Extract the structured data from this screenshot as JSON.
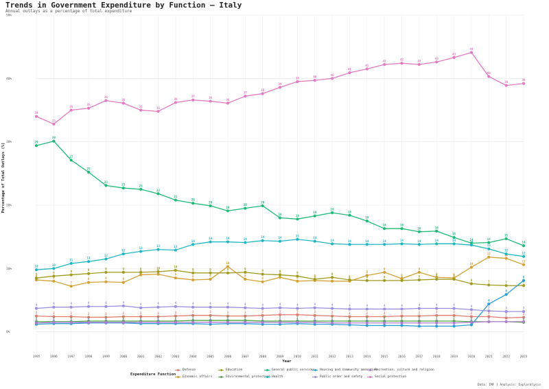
{
  "header": {
    "title": "Trends in Government Expenditure by Function — Italy",
    "subtitle": "Annual outlays as a percentage of total expenditure"
  },
  "caption": "Data: IMF | Analysis: Exploralysis",
  "legend": {
    "title": "Expenditure Function"
  },
  "chart_data": {
    "type": "line",
    "xlabel": "Year",
    "ylabel": "Percentage of Total Outlays (%)",
    "x": [
      1995,
      1996,
      1997,
      1998,
      1999,
      2000,
      2001,
      2002,
      2003,
      2004,
      2005,
      2006,
      2007,
      2008,
      2009,
      2010,
      2011,
      2012,
      2013,
      2014,
      2015,
      2016,
      2017,
      2018,
      2019,
      2020,
      2021,
      2022,
      2023
    ],
    "xlim": [
      1995,
      2023
    ],
    "ylim": [
      -3.5,
      50
    ],
    "yticks": [
      0,
      10,
      20,
      30,
      40,
      50
    ],
    "ytick_labels": [
      "0%",
      "10%",
      "20%",
      "30%",
      "40%",
      "50%"
    ],
    "grid": true,
    "legend_position": "bottom",
    "series": [
      {
        "name": "Defence",
        "color": "#e07b6e",
        "values": [
          2.5,
          2.4,
          2.4,
          2.3,
          2.3,
          2.4,
          2.4,
          2.4,
          2.5,
          2.6,
          2.6,
          2.5,
          2.5,
          2.6,
          2.7,
          2.7,
          2.6,
          2.5,
          2.4,
          2.4,
          2.4,
          2.5,
          2.5,
          2.6,
          2.6,
          2.4,
          2.4,
          2.2,
          2.3
        ],
        "labels": [
          "3",
          "2",
          "2",
          "2",
          "2",
          "2",
          "2",
          "2",
          "3",
          "3",
          "3",
          "3",
          "3",
          "3",
          "3",
          "3",
          "3",
          "2",
          "2",
          "2",
          "2",
          "2",
          "2",
          "3",
          "3",
          "2",
          "2",
          "2",
          "2"
        ]
      },
      {
        "name": "Economic affairs",
        "color": "#d4a032",
        "values": [
          8.2,
          8.0,
          7.2,
          7.8,
          7.9,
          7.8,
          9.0,
          9.1,
          8.5,
          8.2,
          8.3,
          10.3,
          8.3,
          7.9,
          8.6,
          8.0,
          8.1,
          8.0,
          8.0,
          8.9,
          9.4,
          8.4,
          9.4,
          8.6,
          8.5,
          10.2,
          11.8,
          11.6,
          10.6
        ],
        "labels": [
          "8",
          "8",
          "7",
          "8",
          "8",
          "8",
          "9",
          "9",
          "8",
          "8",
          "8",
          "10",
          "8",
          "8",
          "9",
          "8",
          "8",
          "8",
          "8",
          "9",
          "9",
          "8",
          "9",
          "9",
          "9",
          "10",
          "12",
          "12",
          "11"
        ]
      },
      {
        "name": "Education",
        "color": "#a09b1e",
        "values": [
          8.5,
          8.8,
          9.0,
          9.2,
          9.4,
          9.4,
          9.4,
          9.5,
          9.7,
          9.3,
          9.3,
          9.3,
          9.4,
          9.1,
          9.0,
          8.8,
          8.3,
          8.6,
          8.2,
          8.1,
          8.1,
          8.1,
          8.2,
          8.3,
          8.3,
          7.6,
          7.4,
          7.3,
          7.3
        ],
        "labels": [
          "9",
          "9",
          "9",
          "9",
          "9",
          "9",
          "9",
          "10",
          "10",
          "9",
          "9",
          "9",
          "9",
          "9",
          "9",
          "9",
          "8",
          "9",
          "8",
          "8",
          "8",
          "8",
          "8",
          "8",
          "8",
          "8",
          "7",
          "7",
          "7"
        ]
      },
      {
        "name": "Environmental protection",
        "color": "#4aa83c",
        "values": [
          1.6,
          1.6,
          1.6,
          1.7,
          1.7,
          1.7,
          1.7,
          1.7,
          1.7,
          1.8,
          1.8,
          1.8,
          1.8,
          1.7,
          1.7,
          1.7,
          1.7,
          1.7,
          1.7,
          1.7,
          1.7,
          1.7,
          1.7,
          1.7,
          1.7,
          1.6,
          1.6,
          1.6,
          1.5
        ],
        "labels": [
          "2",
          "2",
          "2",
          "2",
          "2",
          "2",
          "2",
          "2",
          "2",
          "2",
          "2",
          "2",
          "2",
          "2",
          "2",
          "2",
          "2",
          "2",
          "2",
          "2",
          "2",
          "2",
          "2",
          "2",
          "2",
          "2",
          "2",
          "2",
          "2"
        ]
      },
      {
        "name": "General public services",
        "color": "#1dba78",
        "values": [
          29.4,
          30.1,
          27.1,
          25.2,
          23.1,
          22.7,
          22.5,
          21.8,
          20.8,
          20.3,
          19.9,
          19.1,
          19.5,
          19.9,
          18.0,
          17.8,
          18.3,
          18.8,
          18.4,
          17.5,
          16.3,
          16.3,
          15.8,
          15.9,
          14.9,
          14.0,
          14.1,
          14.7,
          13.6
        ],
        "labels": [
          "29",
          "30",
          "27",
          "25",
          "23",
          "23",
          "23",
          "22",
          "21",
          "20",
          "20",
          "19",
          "20",
          "20",
          "18",
          "18",
          "18",
          "19",
          "18",
          "18",
          "16",
          "16",
          "16",
          "16",
          "15",
          "14",
          "14",
          "15",
          "14"
        ]
      },
      {
        "name": "Health",
        "color": "#1fb6c4",
        "values": [
          9.8,
          10.0,
          10.8,
          11.1,
          11.5,
          12.3,
          12.7,
          13.0,
          12.9,
          13.8,
          14.2,
          14.2,
          14.1,
          14.4,
          14.3,
          14.6,
          14.3,
          13.9,
          13.8,
          13.8,
          13.8,
          13.9,
          13.8,
          13.9,
          13.9,
          13.7,
          13.1,
          12.3,
          11.9
        ],
        "labels": [
          "10",
          "10",
          "11",
          "11",
          "12",
          "12",
          "13",
          "13",
          "13",
          "14",
          "14",
          "14",
          "14",
          "14",
          "14",
          "15",
          "14",
          "14",
          "14",
          "14",
          "14",
          "14",
          "14",
          "14",
          "14",
          "14",
          "13",
          "12",
          "12"
        ]
      },
      {
        "name": "Housing and community amenities",
        "color": "#2a9fd6",
        "values": [
          1.2,
          1.3,
          1.3,
          1.4,
          1.4,
          1.4,
          1.3,
          1.3,
          1.3,
          1.3,
          1.2,
          1.3,
          1.3,
          1.2,
          1.2,
          1.3,
          1.2,
          1.2,
          1.1,
          1.0,
          1.0,
          1.0,
          0.9,
          0.9,
          0.9,
          1.1,
          4.4,
          5.9,
          8.1
        ],
        "labels": [
          "1",
          "1",
          "1",
          "1",
          "1",
          "1",
          "1",
          "1",
          "1",
          "1",
          "1",
          "1",
          "1",
          "1",
          "1",
          "1",
          "1",
          "1",
          "1",
          "1",
          "1",
          "1",
          "1",
          "1",
          "1",
          "1",
          "4",
          "6",
          "8"
        ]
      },
      {
        "name": "Public order and safety",
        "color": "#9b8fe0",
        "values": [
          3.7,
          3.9,
          3.9,
          4.0,
          4.0,
          4.1,
          3.8,
          3.9,
          4.0,
          3.9,
          3.9,
          3.9,
          3.8,
          3.7,
          3.8,
          3.7,
          3.8,
          3.7,
          3.6,
          3.6,
          3.6,
          3.6,
          3.7,
          3.7,
          3.7,
          3.5,
          3.3,
          3.2,
          3.2
        ],
        "labels": [
          "4",
          "4",
          "4",
          "4",
          "4",
          "4",
          "4",
          "4",
          "4",
          "4",
          "4",
          "4",
          "4",
          "4",
          "4",
          "4",
          "4",
          "4",
          "4",
          "4",
          "4",
          "4",
          "4",
          "4",
          "4",
          "4",
          "3",
          "3",
          "3"
        ]
      },
      {
        "name": "Recreation, culture and religion",
        "color": "#b17cd1",
        "values": [
          1.4,
          1.5,
          1.5,
          1.5,
          1.5,
          1.5,
          1.5,
          1.5,
          1.5,
          1.5,
          1.5,
          1.5,
          1.5,
          1.5,
          1.5,
          1.5,
          1.5,
          1.4,
          1.4,
          1.4,
          1.4,
          1.4,
          1.4,
          1.4,
          1.4,
          1.5,
          1.6,
          1.6,
          1.6
        ],
        "labels": [
          "1",
          "1",
          "1",
          "1",
          "1",
          "1",
          "1",
          "1",
          "1",
          "1",
          "1",
          "1",
          "1",
          "1",
          "1",
          "1",
          "1",
          "1",
          "1",
          "1",
          "1",
          "1",
          "1",
          "1",
          "1",
          "1",
          "2",
          "2",
          "2"
        ]
      },
      {
        "name": "Social protection",
        "color": "#e379c3",
        "values": [
          34.0,
          32.8,
          35.0,
          35.3,
          36.5,
          36.1,
          35.0,
          34.8,
          36.2,
          36.6,
          36.4,
          36.1,
          37.2,
          37.6,
          38.6,
          39.5,
          39.7,
          40.0,
          40.9,
          41.5,
          42.2,
          42.4,
          42.2,
          42.6,
          43.3,
          44.1,
          40.3,
          38.9,
          39.2
        ],
        "labels": [
          "34",
          "33",
          "35",
          "35",
          "36",
          "36",
          "35",
          "35",
          "36",
          "37",
          "36",
          "36",
          "37",
          "38",
          "39",
          "39",
          "40",
          "40",
          "41",
          "41",
          "42",
          "42",
          "42",
          "43",
          "43",
          "44",
          "40",
          "39",
          "39"
        ]
      }
    ]
  }
}
